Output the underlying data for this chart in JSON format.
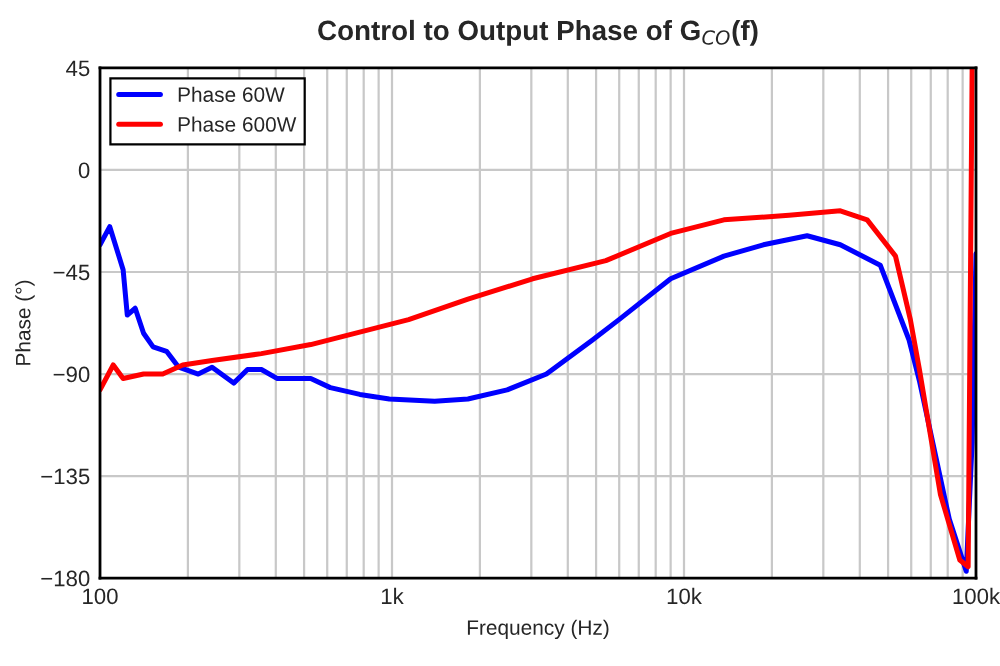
{
  "chart_data": {
    "type": "line",
    "title": "Control to Output Phase of G$_{CO}$(f)",
    "xlabel": "Frequency (Hz)",
    "ylabel": "Phase (°)",
    "log": "x",
    "xlim": [
      100,
      100000
    ],
    "xticks": [
      100,
      {
        "value": 1000,
        "label": "1k"
      },
      {
        "value": 10000,
        "label": "10k"
      },
      {
        "value": 100000,
        "label": "100k"
      }
    ],
    "ylim": [
      -180,
      45
    ],
    "yticks": [
      45,
      0,
      {
        "value": -45,
        "label": "−45"
      },
      {
        "value": -90,
        "label": "−90"
      },
      {
        "value": -135,
        "label": "−135"
      },
      {
        "value": -180,
        "label": "−180"
      }
    ],
    "grid": true,
    "legend": "top left",
    "line_style": "solid",
    "marker": "none",
    "series": [
      {
        "name": "Phase 60W",
        "color": "#0000ff",
        "x": [
          100,
          108,
          120,
          124,
          132,
          141,
          152,
          169,
          186,
          217,
          242,
          287,
          320,
          357,
          405,
          527,
          615,
          776,
          979,
          1400,
          1820,
          2480,
          3380,
          4860,
          5990,
          9000,
          13700,
          18700,
          26400,
          34300,
          47000,
          59000,
          64000,
          81000,
          92600,
          97000,
          100000
        ],
        "values": [
          -33,
          -25,
          -44,
          -64,
          -61,
          -72,
          -78,
          -80,
          -87,
          -90,
          -87,
          -94,
          -88,
          -88,
          -92,
          -92,
          -96,
          -99,
          -101,
          -102,
          -101,
          -97,
          -90,
          -75,
          -66,
          -48,
          -38,
          -33,
          -29,
          -33,
          -42,
          -75,
          -93,
          -154,
          -177,
          -120,
          -37
        ]
      },
      {
        "name": "Phase 600W",
        "color": "#ff0000",
        "x": [
          100,
          111,
          120,
          141,
          164,
          192,
          242,
          357,
          527,
          1140,
          1820,
          3030,
          5400,
          9000,
          13700,
          22900,
          34300,
          42400,
          53000,
          59600,
          64000,
          75500,
          88000,
          94000,
          97000
        ],
        "values": [
          -97,
          -86,
          -92,
          -90,
          -90,
          -86,
          -84,
          -81,
          -77,
          -66,
          -57,
          -48,
          -40,
          -28,
          -22,
          -20,
          -18,
          -22,
          -38,
          -66,
          -88,
          -143,
          -172,
          -175,
          45
        ]
      }
    ]
  }
}
